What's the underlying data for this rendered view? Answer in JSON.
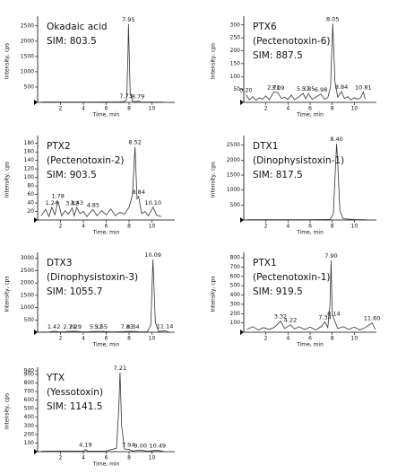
{
  "chart_data": [
    {
      "type": "line",
      "title": "Okadaic acid",
      "annotation": "SIM: 803.5",
      "x_label": "Time, min",
      "y_label": "Intensity, cps",
      "x": [
        0.3,
        1,
        2,
        3,
        4,
        5,
        6,
        7,
        7.5,
        7.73,
        7.8,
        7.9,
        7.95,
        8.0,
        8.1,
        8.3,
        8.6,
        8.79,
        9,
        10,
        11
      ],
      "values": [
        10,
        15,
        10,
        12,
        10,
        12,
        14,
        15,
        20,
        60,
        200,
        1500,
        2560,
        1800,
        300,
        40,
        20,
        45,
        15,
        12,
        10
      ],
      "peaks": [
        7.73,
        7.95,
        8.79
      ],
      "color": "#333333",
      "xlim": [
        0,
        12
      ],
      "xticks": [
        2,
        4,
        6,
        8,
        10
      ],
      "ylim": [
        0,
        2700
      ],
      "yticks": [
        500,
        1000,
        1500,
        2000,
        2500
      ]
    },
    {
      "type": "line",
      "title": "PTX6",
      "subtitle": "(Pectenotoxin-6)",
      "annotation": "SIM: 887.5",
      "x_label": "Time, min",
      "y_label": "Intensity, cps",
      "x": [
        0.2,
        0.5,
        0.8,
        1.1,
        1.4,
        1.7,
        2.0,
        2.3,
        2.71,
        3.09,
        3.4,
        3.7,
        4.0,
        4.3,
        4.6,
        5.0,
        5.37,
        5.6,
        5.85,
        6.2,
        6.5,
        6.98,
        7.3,
        7.6,
        7.85,
        8.05,
        8.25,
        8.5,
        8.84,
        9.1,
        9.4,
        9.7,
        10.0,
        10.3,
        10.6,
        10.81,
        11
      ],
      "values": [
        30,
        10,
        22,
        8,
        18,
        12,
        25,
        10,
        40,
        38,
        15,
        20,
        12,
        28,
        10,
        22,
        35,
        14,
        34,
        12,
        20,
        32,
        12,
        18,
        60,
        305,
        80,
        20,
        42,
        15,
        22,
        10,
        18,
        12,
        20,
        40,
        12
      ],
      "peaks": [
        {
          "value": 0.2,
          "label": "0.20"
        },
        2.71,
        3.09,
        5.37,
        5.85,
        6.98,
        8.05,
        8.84,
        10.81
      ],
      "color": "#333333",
      "xlim": [
        0,
        12
      ],
      "xticks": [
        2,
        4,
        6,
        8,
        10
      ],
      "ylim": [
        0,
        320
      ],
      "yticks": [
        50,
        100,
        150,
        200,
        250,
        300
      ]
    },
    {
      "type": "line",
      "title": "PTX2",
      "subtitle": "(Pectenotoxin-2)",
      "annotation": "SIM: 903.5",
      "x_label": "Time, min",
      "y_label": "Intensity, cps",
      "x": [
        0.3,
        0.7,
        1.0,
        1.24,
        1.5,
        1.78,
        2.1,
        2.4,
        2.7,
        3.02,
        3.2,
        3.43,
        3.7,
        4.0,
        4.3,
        4.6,
        4.85,
        5.2,
        5.6,
        6.0,
        6.4,
        6.8,
        7.2,
        7.6,
        8.0,
        8.3,
        8.52,
        8.7,
        8.84,
        9.1,
        9.4,
        9.7,
        10.1,
        10.4,
        10.8
      ],
      "values": [
        10,
        25,
        8,
        30,
        12,
        45,
        10,
        22,
        14,
        28,
        10,
        30,
        15,
        20,
        8,
        18,
        24,
        10,
        22,
        12,
        26,
        10,
        18,
        14,
        30,
        60,
        172,
        50,
        55,
        15,
        20,
        10,
        30,
        12,
        8
      ],
      "peaks": [
        1.24,
        1.78,
        3.02,
        3.43,
        4.85,
        8.52,
        8.84,
        {
          "value": 10.1,
          "label": "10.10"
        }
      ],
      "color": "#333333",
      "xlim": [
        0,
        12
      ],
      "xticks": [
        2,
        4,
        6,
        8,
        10
      ],
      "ylim": [
        0,
        190
      ],
      "yticks": [
        20,
        40,
        60,
        80,
        100,
        120,
        140,
        160,
        180
      ]
    },
    {
      "type": "line",
      "title": "DTX1",
      "subtitle": "(Dinophysistoxin-1)",
      "annotation": "SIM: 817.5",
      "x_label": "Time, min",
      "y_label": "Intensity, cps",
      "x": [
        0.3,
        2,
        4,
        6,
        7,
        7.8,
        8.1,
        8.3,
        8.4,
        8.5,
        8.7,
        9,
        10,
        11
      ],
      "values": [
        10,
        12,
        10,
        12,
        14,
        20,
        200,
        1800,
        2550,
        1900,
        300,
        40,
        15,
        10
      ],
      "peaks": [
        {
          "value": 8.4,
          "label": "8.40"
        }
      ],
      "color": "#333333",
      "xlim": [
        0,
        12
      ],
      "xticks": [
        2,
        4,
        6,
        8,
        10
      ],
      "ylim": [
        0,
        2700
      ],
      "yticks": [
        500,
        1000,
        1500,
        2000,
        2500
      ]
    },
    {
      "type": "line",
      "title": "DTX3",
      "subtitle": "(Dinophysistoxin-3)",
      "annotation": "SIM: 1055.7",
      "x_label": "Time, min",
      "y_label": "Intensity, cps",
      "x": [
        0.3,
        1,
        1.42,
        2,
        2.79,
        3.29,
        4,
        4.5,
        5.12,
        5.55,
        6.5,
        7.2,
        7.83,
        8.34,
        9,
        9.6,
        9.9,
        10.09,
        10.3,
        10.6,
        11.14,
        11.5
      ],
      "values": [
        10,
        15,
        40,
        15,
        35,
        38,
        15,
        20,
        36,
        36,
        15,
        20,
        30,
        35,
        15,
        20,
        300,
        2950,
        400,
        30,
        60,
        10
      ],
      "peaks": [
        1.42,
        2.79,
        3.29,
        5.12,
        5.55,
        7.83,
        8.34,
        10.09,
        11.14
      ],
      "color": "#333333",
      "xlim": [
        0,
        12
      ],
      "xticks": [
        2,
        4,
        6,
        8,
        10
      ],
      "ylim": [
        0,
        3100
      ],
      "yticks": [
        500,
        1000,
        1500,
        2000,
        2500,
        3000
      ]
    },
    {
      "type": "line",
      "title": "PTX1",
      "subtitle": "(Pectenotoxin-1)",
      "annotation": "SIM: 919.5",
      "x_label": "Time, min",
      "y_label": "Intensity, cps",
      "x": [
        0.3,
        0.8,
        1.3,
        1.8,
        2.3,
        2.8,
        3.32,
        3.7,
        4.22,
        4.6,
        5.0,
        5.5,
        6.0,
        6.5,
        7.0,
        7.34,
        7.6,
        7.8,
        7.9,
        8.0,
        8.14,
        8.5,
        9,
        9.5,
        10,
        10.5,
        11,
        11.6,
        11.9
      ],
      "values": [
        30,
        60,
        25,
        50,
        30,
        55,
        120,
        40,
        80,
        35,
        60,
        30,
        55,
        25,
        60,
        110,
        50,
        300,
        770,
        200,
        150,
        40,
        60,
        30,
        55,
        25,
        50,
        100,
        30
      ],
      "peaks": [
        3.32,
        4.22,
        7.34,
        {
          "value": 7.9,
          "label": "7.90"
        },
        8.14,
        {
          "value": 11.6,
          "label": "11.60"
        }
      ],
      "color": "#333333",
      "xlim": [
        0,
        12
      ],
      "xticks": [
        2,
        4,
        6,
        8,
        10
      ],
      "ylim": [
        0,
        820
      ],
      "yticks": [
        100,
        200,
        300,
        400,
        500,
        600,
        700,
        800
      ]
    },
    {
      "type": "line",
      "title": "YTX",
      "subtitle": "(Yessotoxin)",
      "annotation": "SIM: 1141.5",
      "x_label": "Time, min",
      "y_label": "Intensity, cps",
      "x": [
        0.3,
        2,
        4,
        4.19,
        4.4,
        6,
        6.9,
        7.1,
        7.21,
        7.35,
        7.6,
        7.94,
        8.3,
        9,
        9.6,
        10.49,
        11
      ],
      "values": [
        5,
        8,
        6,
        25,
        6,
        8,
        40,
        500,
        920,
        300,
        30,
        28,
        8,
        18,
        6,
        15,
        5
      ],
      "peaks": [
        4.19,
        7.21,
        7.94,
        {
          "value": 9.0,
          "label": "9.00"
        },
        10.49
      ],
      "color": "#333333",
      "xlim": [
        0,
        12
      ],
      "xticks": [
        2,
        4,
        6,
        8,
        10
      ],
      "ylim": [
        0,
        940
      ],
      "yticks": [
        100,
        200,
        300,
        400,
        500,
        600,
        700,
        800,
        900,
        940
      ]
    }
  ]
}
